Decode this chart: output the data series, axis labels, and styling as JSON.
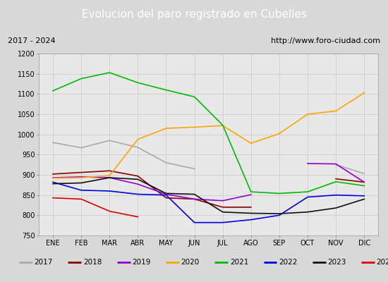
{
  "title": "Evolucion del paro registrado en Cubelles",
  "subtitle_left": "2017 - 2024",
  "subtitle_right": "http://www.foro-ciudad.com",
  "x_labels": [
    "ENE",
    "FEB",
    "MAR",
    "ABR",
    "MAY",
    "JUN",
    "JUL",
    "AGO",
    "SEP",
    "OCT",
    "NOV",
    "DIC"
  ],
  "ylim": [
    750,
    1200
  ],
  "yticks": [
    750,
    800,
    850,
    900,
    950,
    1000,
    1050,
    1100,
    1150,
    1200
  ],
  "series": {
    "2017": {
      "color": "#aaaaaa",
      "data": [
        980,
        967,
        985,
        968,
        930,
        915,
        null,
        null,
        null,
        null,
        925,
        903
      ]
    },
    "2018": {
      "color": "#8b0000",
      "data": [
        902,
        906,
        910,
        897,
        843,
        840,
        820,
        820,
        null,
        null,
        890,
        882
      ]
    },
    "2019": {
      "color": "#9400d3",
      "data": [
        893,
        895,
        893,
        877,
        852,
        840,
        836,
        851,
        null,
        928,
        927,
        882
      ]
    },
    "2020": {
      "color": "#ffa500",
      "data": [
        892,
        893,
        898,
        988,
        1015,
        1018,
        1022,
        978,
        1002,
        1050,
        1058,
        1103
      ]
    },
    "2021": {
      "color": "#00bb00",
      "data": [
        1108,
        1138,
        1153,
        1128,
        1110,
        1093,
        1023,
        858,
        854,
        858,
        883,
        873
      ]
    },
    "2022": {
      "color": "#0000dd",
      "data": [
        882,
        862,
        860,
        852,
        850,
        782,
        782,
        789,
        800,
        845,
        850,
        848
      ]
    },
    "2023": {
      "color": "#111111",
      "data": [
        878,
        880,
        893,
        889,
        854,
        852,
        808,
        805,
        804,
        808,
        818,
        840
      ]
    },
    "2024": {
      "color": "#dd0000",
      "data": [
        843,
        840,
        810,
        796,
        null,
        null,
        null,
        null,
        null,
        null,
        null,
        null
      ]
    }
  },
  "bg_color": "#d8d8d8",
  "plot_bg_color": "#e8e8e8",
  "title_bg_color": "#5588cc",
  "title_text_color": "#ffffff",
  "subtitle_bg_color": "#f0f0f0",
  "grid_color": "#cccccc",
  "legend_bg_color": "#f8f8f8"
}
